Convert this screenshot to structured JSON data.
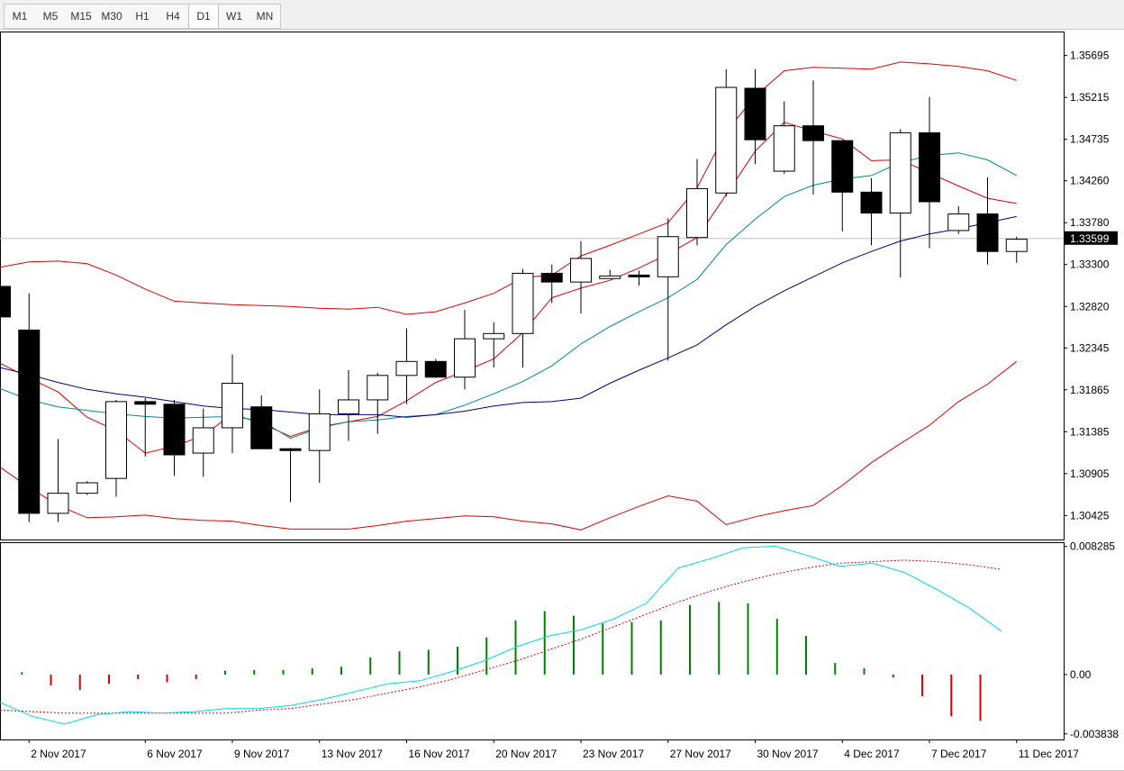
{
  "toolbar": {
    "timeframes": [
      "M1",
      "M5",
      "M15",
      "M30",
      "H1",
      "H4",
      "D1",
      "W1",
      "MN"
    ],
    "active": "D1"
  },
  "price_scale": {
    "labels": [
      "1.35695",
      "1.35215",
      "1.34735",
      "1.34260",
      "1.33780",
      "1.33300",
      "1.32820",
      "1.32345",
      "1.31865",
      "1.31385",
      "1.30905",
      "1.30425"
    ],
    "current_price": "1.33599"
  },
  "indicator_scale": {
    "labels": [
      "0.008285",
      "0.00",
      "-0.003838"
    ]
  },
  "date_labels": [
    "2 Nov 2017",
    "6 Nov 2017",
    "9 Nov 2017",
    "13 Nov 2017",
    "16 Nov 2017",
    "20 Nov 2017",
    "23 Nov 2017",
    "27 Nov 2017",
    "30 Nov 2017",
    "4 Dec 2017",
    "7 Dec 2017",
    "11 Dec 2017"
  ],
  "colors": {
    "bollinger": "#e00000",
    "ma_teal": "#008b8b",
    "ma_navy": "#000080",
    "osc_line": "#00d8e8",
    "osc_signal": "#e00000",
    "hist_up": "#008000",
    "hist_down": "#e00000",
    "current_price_line": "#c0c0c0"
  },
  "chart_data": {
    "type": "candlestick",
    "symbol_timeframe": "D1",
    "ylim": [
      1.3015,
      1.3597
    ],
    "candles": [
      {
        "o": 1.3305,
        "h": 1.3305,
        "l": 1.327,
        "c": 1.327
      },
      {
        "o": 1.3255,
        "h": 1.3297,
        "l": 1.3035,
        "c": 1.3045
      },
      {
        "o": 1.3045,
        "h": 1.313,
        "l": 1.3035,
        "c": 1.3068
      },
      {
        "o": 1.3068,
        "h": 1.3082,
        "l": 1.3066,
        "c": 1.308
      },
      {
        "o": 1.3085,
        "h": 1.3175,
        "l": 1.3064,
        "c": 1.3173
      },
      {
        "o": 1.3173,
        "h": 1.3177,
        "l": 1.311,
        "c": 1.317
      },
      {
        "o": 1.317,
        "h": 1.3175,
        "l": 1.3088,
        "c": 1.3112
      },
      {
        "o": 1.3114,
        "h": 1.3165,
        "l": 1.3087,
        "c": 1.3143
      },
      {
        "o": 1.3143,
        "h": 1.3227,
        "l": 1.3114,
        "c": 1.3194
      },
      {
        "o": 1.3167,
        "h": 1.318,
        "l": 1.3119,
        "c": 1.3119
      },
      {
        "o": 1.3119,
        "h": 1.312,
        "l": 1.3058,
        "c": 1.3118
      },
      {
        "o": 1.3117,
        "h": 1.3187,
        "l": 1.308,
        "c": 1.3159
      },
      {
        "o": 1.3159,
        "h": 1.3209,
        "l": 1.3128,
        "c": 1.3175
      },
      {
        "o": 1.3175,
        "h": 1.3206,
        "l": 1.3136,
        "c": 1.3203
      },
      {
        "o": 1.3203,
        "h": 1.3257,
        "l": 1.317,
        "c": 1.3219
      },
      {
        "o": 1.3219,
        "h": 1.3222,
        "l": 1.32,
        "c": 1.3201
      },
      {
        "o": 1.3201,
        "h": 1.3278,
        "l": 1.3187,
        "c": 1.3245
      },
      {
        "o": 1.3245,
        "h": 1.3264,
        "l": 1.3212,
        "c": 1.3251
      },
      {
        "o": 1.3251,
        "h": 1.3325,
        "l": 1.3212,
        "c": 1.332
      },
      {
        "o": 1.332,
        "h": 1.333,
        "l": 1.3286,
        "c": 1.331
      },
      {
        "o": 1.331,
        "h": 1.3357,
        "l": 1.3274,
        "c": 1.3337
      },
      {
        "o": 1.3314,
        "h": 1.3324,
        "l": 1.3314,
        "c": 1.3317
      },
      {
        "o": 1.3318,
        "h": 1.3323,
        "l": 1.3306,
        "c": 1.3316
      },
      {
        "o": 1.3316,
        "h": 1.3383,
        "l": 1.322,
        "c": 1.3362
      },
      {
        "o": 1.3361,
        "h": 1.3451,
        "l": 1.3352,
        "c": 1.3417
      },
      {
        "o": 1.3412,
        "h": 1.3554,
        "l": 1.3408,
        "c": 1.3533
      },
      {
        "o": 1.3532,
        "h": 1.3554,
        "l": 1.3445,
        "c": 1.3473
      },
      {
        "o": 1.3437,
        "h": 1.3517,
        "l": 1.3434,
        "c": 1.3489
      },
      {
        "o": 1.3489,
        "h": 1.3541,
        "l": 1.341,
        "c": 1.3472
      },
      {
        "o": 1.3472,
        "h": 1.3472,
        "l": 1.3368,
        "c": 1.3413
      },
      {
        "o": 1.3413,
        "h": 1.3429,
        "l": 1.3352,
        "c": 1.3389
      },
      {
        "o": 1.3389,
        "h": 1.3485,
        "l": 1.3315,
        "c": 1.3481
      },
      {
        "o": 1.3481,
        "h": 1.3522,
        "l": 1.3349,
        "c": 1.3402
      },
      {
        "o": 1.3369,
        "h": 1.3397,
        "l": 1.3365,
        "c": 1.3388
      },
      {
        "o": 1.3388,
        "h": 1.343,
        "l": 1.333,
        "c": 1.3345
      },
      {
        "o": 1.3345,
        "h": 1.3362,
        "l": 1.3332,
        "c": 1.3359
      }
    ],
    "bollinger_upper": [
      1.3327,
      1.3333,
      1.3334,
      1.3331,
      1.3318,
      1.3302,
      1.3288,
      1.3286,
      1.3284,
      1.3283,
      1.3282,
      1.328,
      1.3279,
      1.3281,
      1.3273,
      1.3276,
      1.3286,
      1.3297,
      1.3315,
      1.3318,
      1.334,
      1.3352,
      1.3365,
      1.3378,
      1.3418,
      1.3482,
      1.3523,
      1.3552,
      1.3556,
      1.3555,
      1.3554,
      1.3562,
      1.356,
      1.3557,
      1.3552,
      1.3541
    ],
    "bollinger_middle": [
      1.3217,
      1.32,
      1.3184,
      1.3155,
      1.314,
      1.3114,
      1.3122,
      1.3134,
      1.3159,
      1.3148,
      1.3133,
      1.3144,
      1.315,
      1.3156,
      1.3174,
      1.3195,
      1.3208,
      1.3222,
      1.3252,
      1.3292,
      1.3303,
      1.3312,
      1.3326,
      1.3342,
      1.3361,
      1.341,
      1.346,
      1.3493,
      1.3483,
      1.3474,
      1.3449,
      1.345,
      1.3435,
      1.342,
      1.3406,
      1.34
    ],
    "bollinger_lower": [
      1.3098,
      1.3075,
      1.3054,
      1.304,
      1.3041,
      1.3043,
      1.3039,
      1.3037,
      1.3036,
      1.3031,
      1.3027,
      1.3027,
      1.3027,
      1.3031,
      1.3036,
      1.3039,
      1.3042,
      1.3041,
      1.3036,
      1.3033,
      1.3026,
      1.304,
      1.3053,
      1.3065,
      1.3059,
      1.3032,
      1.3041,
      1.3048,
      1.3054,
      1.3077,
      1.3103,
      1.3125,
      1.3146,
      1.3173,
      1.3193,
      1.3219
    ],
    "ma_teal": [
      1.3188,
      1.3175,
      1.3167,
      1.3163,
      1.3159,
      1.3156,
      1.3154,
      1.3155,
      1.3156,
      1.3151,
      1.3131,
      1.3143,
      1.315,
      1.3152,
      1.3156,
      1.3158,
      1.3169,
      1.3182,
      1.3196,
      1.3214,
      1.3239,
      1.3259,
      1.3276,
      1.3292,
      1.3313,
      1.3353,
      1.3382,
      1.3408,
      1.3421,
      1.3428,
      1.3432,
      1.3447,
      1.3455,
      1.3458,
      1.345,
      1.3432
    ],
    "ma_navy": [
      1.3212,
      1.3204,
      1.3195,
      1.3187,
      1.3182,
      1.3178,
      1.3173,
      1.3168,
      1.3165,
      1.3164,
      1.3161,
      1.3158,
      1.3158,
      1.3158,
      1.3155,
      1.3158,
      1.3162,
      1.3168,
      1.3172,
      1.3173,
      1.3177,
      1.3194,
      1.3209,
      1.3223,
      1.3238,
      1.3261,
      1.3282,
      1.33,
      1.3316,
      1.3332,
      1.3345,
      1.3357,
      1.3365,
      1.3371,
      1.3378,
      1.3385
    ],
    "oscillator": {
      "ylim": [
        -0.0042,
        0.0085
      ],
      "main": [
        -0.0018,
        -0.0027,
        -0.0032,
        -0.0026,
        -0.0024,
        -0.0025,
        -0.0024,
        -0.0022,
        -0.0022,
        -0.002,
        -0.0016,
        -0.0011,
        -0.0006,
        -0.0004,
        0.0002,
        0.0009,
        0.0018,
        0.0025,
        0.0029,
        0.0036,
        0.0046,
        0.0069,
        0.0075,
        0.0082,
        0.0083,
        0.0077,
        0.007,
        0.0072,
        0.0066,
        0.0055,
        0.0043,
        0.0028
      ],
      "signal": [
        -0.0023,
        -0.0024,
        -0.0025,
        -0.0025,
        -0.0025,
        -0.0025,
        -0.0025,
        -0.0025,
        -0.0023,
        -0.0022,
        -0.0019,
        -0.0016,
        -0.0012,
        -0.0008,
        -0.0003,
        0.0003,
        0.0009,
        0.0016,
        0.0023,
        0.0031,
        0.0039,
        0.0047,
        0.0054,
        0.006,
        0.0065,
        0.0069,
        0.0072,
        0.0073,
        0.0074,
        0.0073,
        0.0071,
        0.0068
      ],
      "histogram": [
        0.00015,
        -0.0007,
        -0.001,
        -0.0006,
        -0.0003,
        -0.0005,
        -0.0003,
        0.00025,
        0.0003,
        0.0003,
        0.0004,
        0.0005,
        0.0011,
        0.0015,
        0.0016,
        0.0018,
        0.0024,
        0.0035,
        0.0041,
        0.0038,
        0.0033,
        0.0034,
        0.0035,
        0.0045,
        0.0047,
        0.0046,
        0.0036,
        0.0025,
        0.00075,
        0.0004,
        -0.0002,
        -0.0014,
        -0.0027,
        -0.003
      ]
    }
  }
}
